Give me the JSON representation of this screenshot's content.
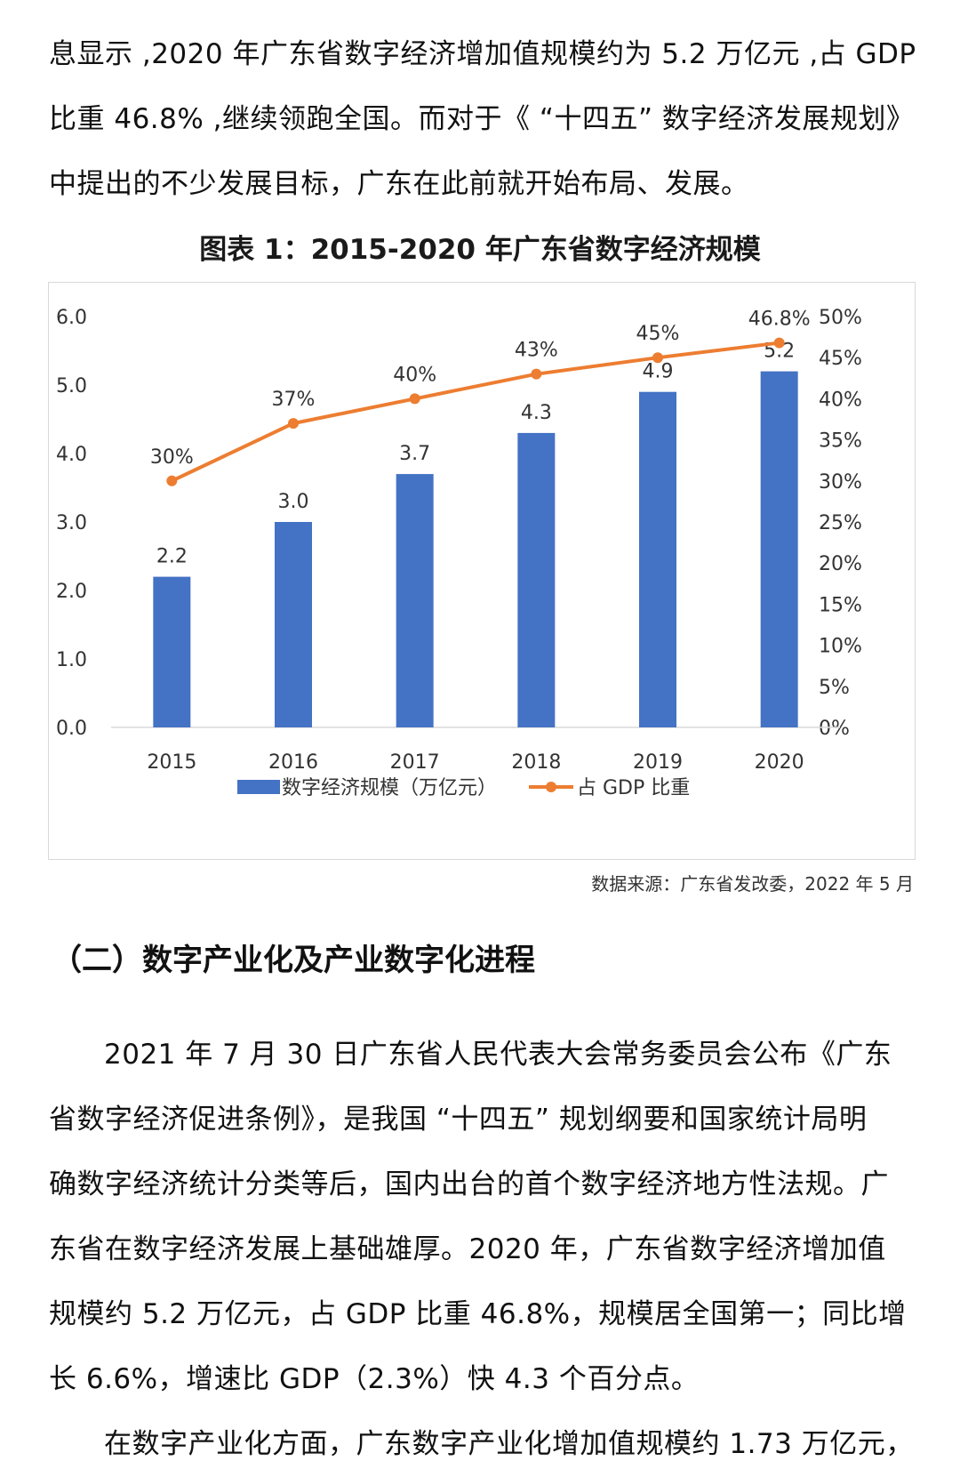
{
  "intro": {
    "lines": [
      "息显示 ,2020 年广东省数字经济增加值规模约为 5.2 万亿元 ,占 GDP",
      "比重 46.8% ,继续领跑全国。而对于《 “十四五” 数字经济发展规划》",
      "中提出的不少发展目标，广东在此前就开始布局、发展。"
    ]
  },
  "chart_title": "图表 1：2015-2020 年广东省数字经济规模",
  "chart_data": {
    "type": "bar",
    "categories": [
      "2015",
      "2016",
      "2017",
      "2018",
      "2019",
      "2020"
    ],
    "series": [
      {
        "name": "数字经济规模（万亿元）",
        "type": "bar",
        "axis": "left",
        "values": [
          2.2,
          3.0,
          3.7,
          4.3,
          4.9,
          5.2
        ],
        "labels": [
          "2.2",
          "3.0",
          "3.7",
          "4.3",
          "4.9",
          "5.2"
        ],
        "color": "#4472C4"
      },
      {
        "name": "占 GDP 比重",
        "type": "line",
        "axis": "right",
        "values": [
          30,
          37,
          40,
          43,
          45,
          46.8
        ],
        "labels": [
          "30%",
          "37%",
          "40%",
          "43%",
          "45%",
          "46.8%"
        ],
        "color": "#ED7D31"
      }
    ],
    "y_left": {
      "range": [
        0,
        6
      ],
      "ticks": [
        "0.0",
        "1.0",
        "2.0",
        "3.0",
        "4.0",
        "5.0",
        "6.0"
      ]
    },
    "y_right": {
      "range": [
        0,
        50
      ],
      "ticks": [
        "0%",
        "5%",
        "10%",
        "15%",
        "20%",
        "25%",
        "30%",
        "35%",
        "40%",
        "45%",
        "50%"
      ]
    },
    "legend": {
      "placement": "bottom",
      "items": [
        "数字经济规模（万亿元）",
        "占 GDP 比重"
      ]
    },
    "grid": false
  },
  "source": "数据来源：广东省发改委，2022 年 5 月",
  "section_heading": "（二）数字产业化及产业数字化进程",
  "body": {
    "lines": [
      "2021 年 7 月 30 日广东省人民代表大会常务委员会公布《广东",
      "省数字经济促进条例》，是我国 “十四五” 规划纲要和国家统计局明",
      "确数字经济统计分类等后，国内出台的首个数字经济地方性法规。广",
      "东省在数字经济发展上基础雄厚。2020 年，广东省数字经济增加值",
      "规模约 5.2 万亿元，占 GDP 比重 46.8%，规模居全国第一；同比增",
      "长 6.6%，增速比 GDP（2.3%）快 4.3 个百分点。",
      "在数字产业化方面，广东数字产业化增加值规模约 1.73 万亿元，"
    ]
  }
}
